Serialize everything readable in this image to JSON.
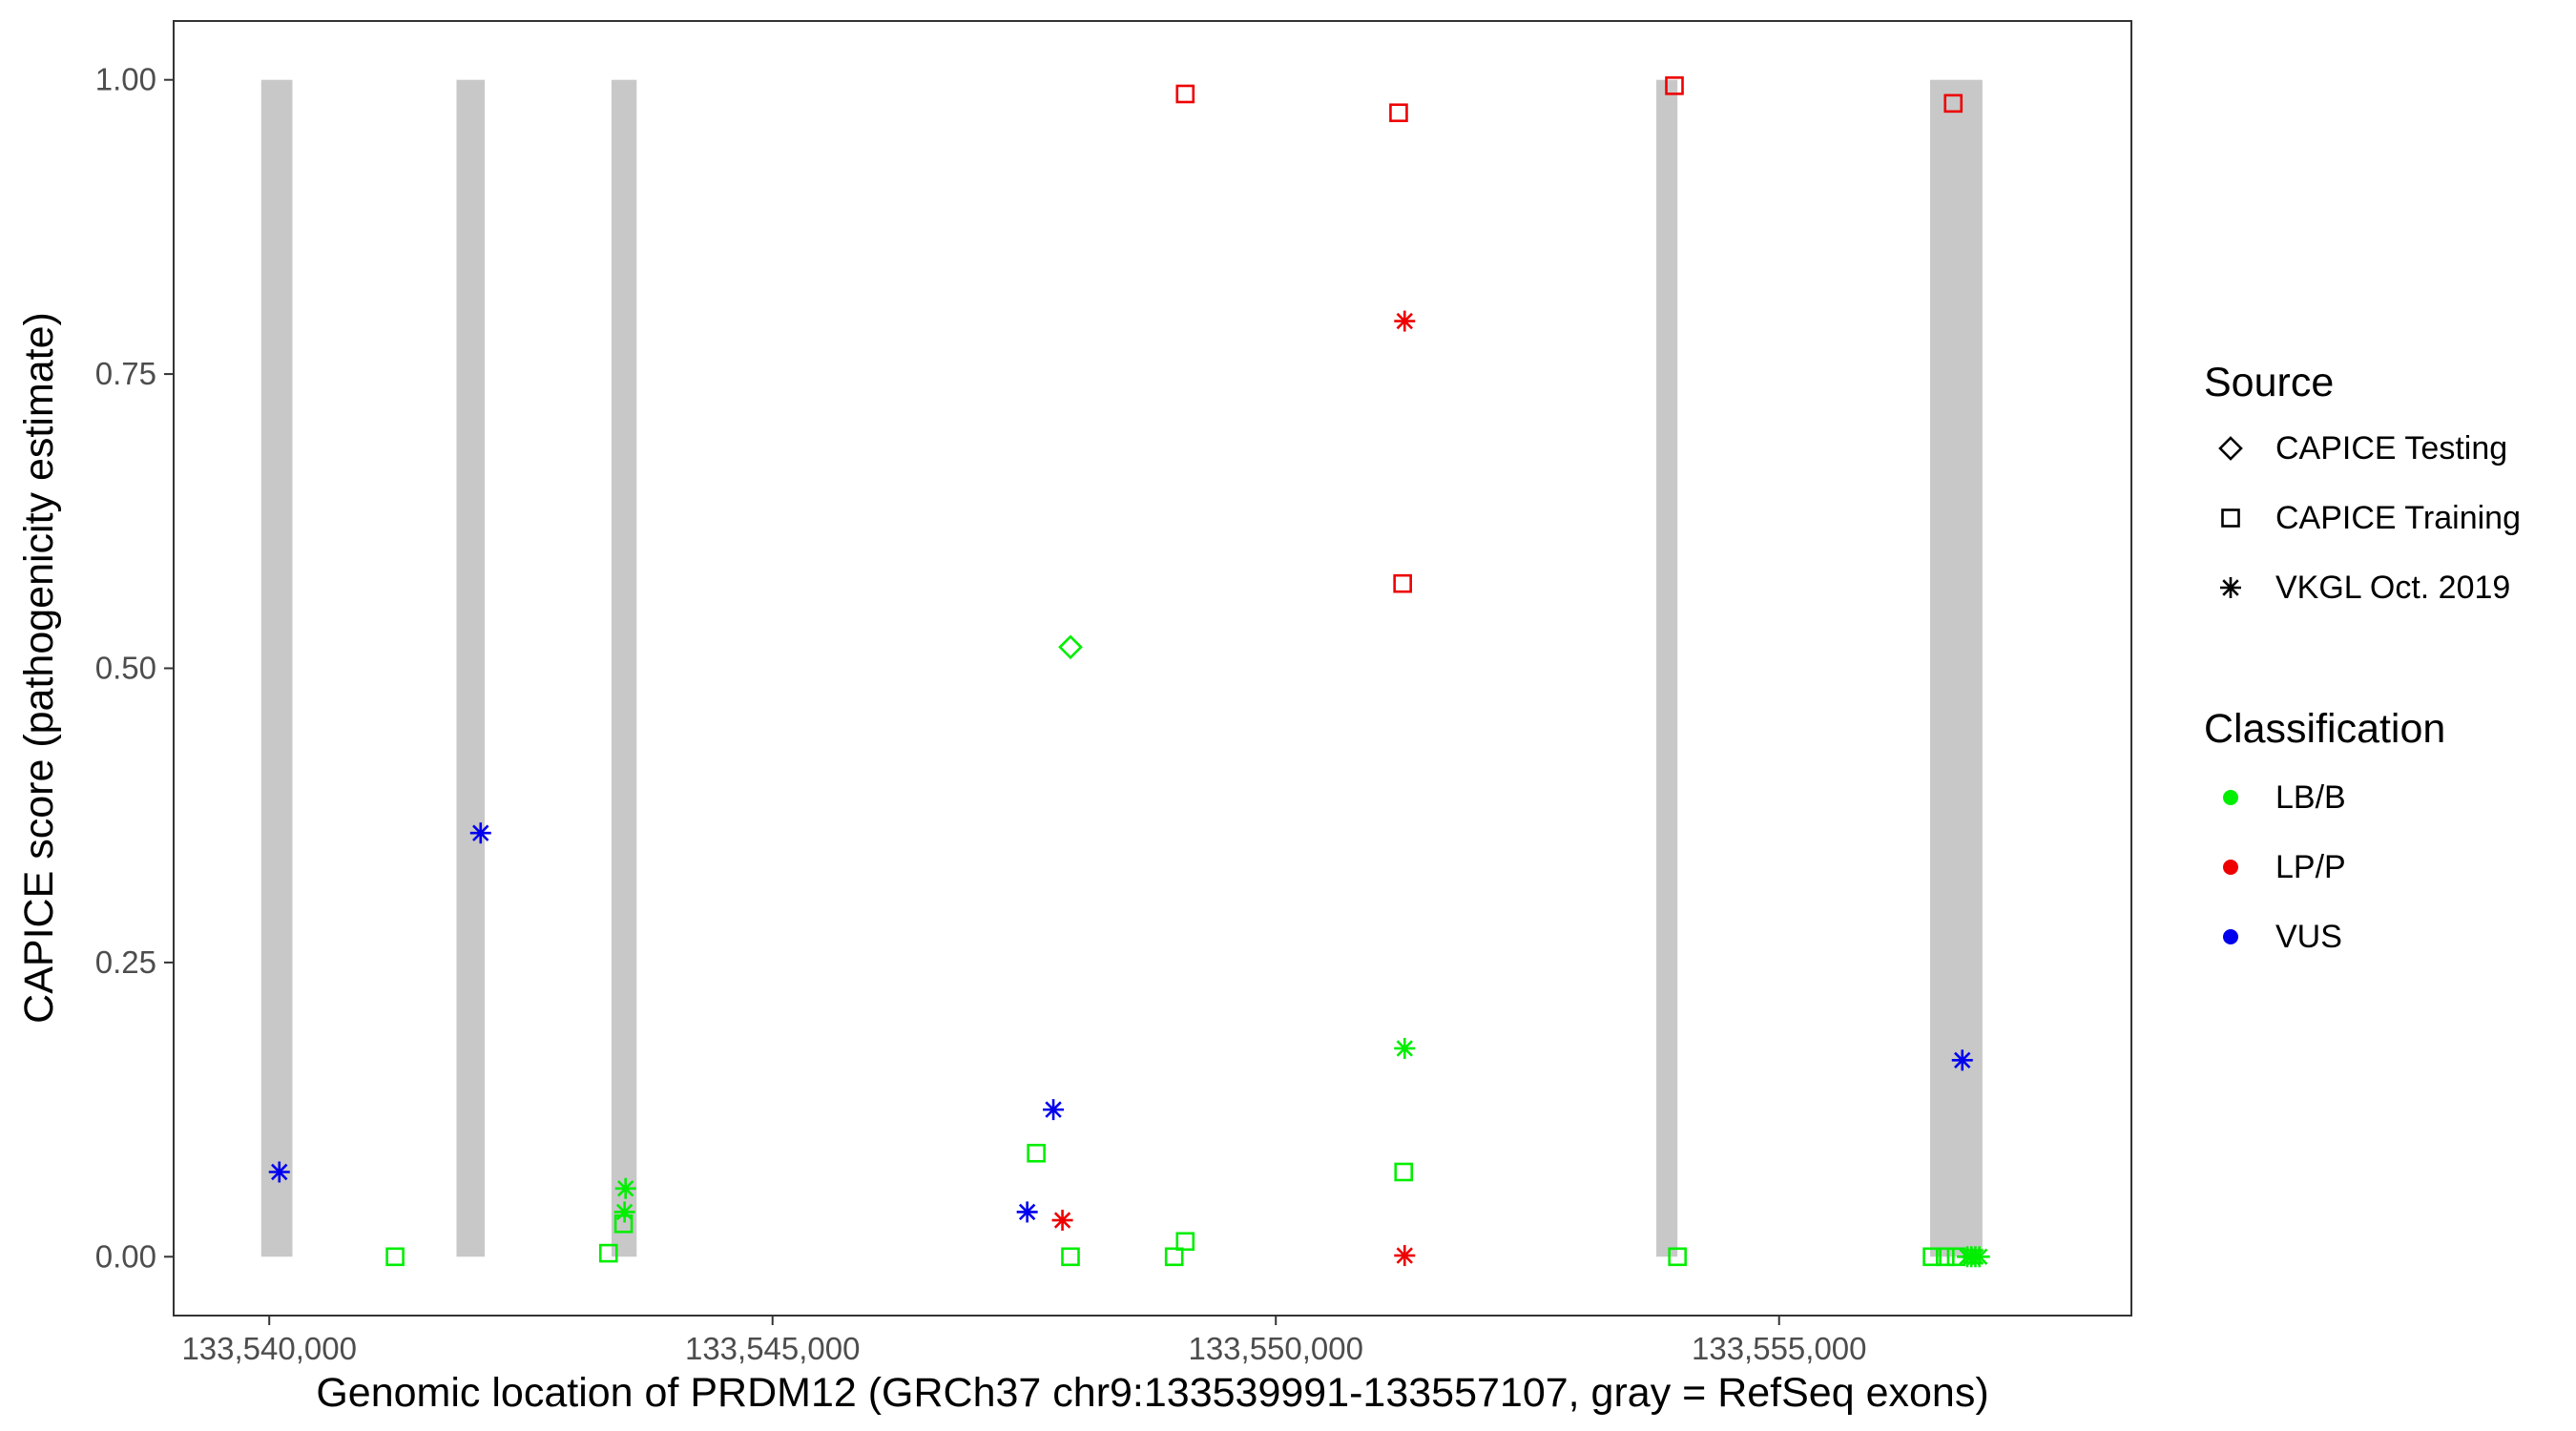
{
  "chart_data": {
    "type": "scatter",
    "xlabel": "Genomic location of PRDM12 (GRCh37 chr9:133539991-133557107, gray = RefSeq exons)",
    "ylabel": "CAPICE score (pathogenicity estimate)",
    "xlim": [
      133539050,
      133558500
    ],
    "ylim": [
      -0.05,
      1.05
    ],
    "x_ticks": [
      {
        "value": 133540000,
        "label": "133,540,000"
      },
      {
        "value": 133545000,
        "label": "133,545,000"
      },
      {
        "value": 133550000,
        "label": "133,550,000"
      },
      {
        "value": 133555000,
        "label": "133,555,000"
      }
    ],
    "y_ticks": [
      {
        "value": 0.0,
        "label": "0.00"
      },
      {
        "value": 0.25,
        "label": "0.25"
      },
      {
        "value": 0.5,
        "label": "0.50"
      },
      {
        "value": 0.75,
        "label": "0.75"
      },
      {
        "value": 1.0,
        "label": "1.00"
      }
    ],
    "exons": [
      {
        "start": 133539920,
        "end": 133540230
      },
      {
        "start": 133541860,
        "end": 133542140
      },
      {
        "start": 133543400,
        "end": 133543650
      },
      {
        "start": 133553780,
        "end": 133553990
      },
      {
        "start": 133556500,
        "end": 133557020
      }
    ],
    "exon_color": "#c8c8c8",
    "legend_source": {
      "title": "Source",
      "entries": [
        {
          "label": "CAPICE Testing",
          "shape": "diamond"
        },
        {
          "label": "CAPICE Training",
          "shape": "square"
        },
        {
          "label": "VKGL Oct. 2019",
          "shape": "asterisk"
        }
      ]
    },
    "legend_classification": {
      "title": "Classification",
      "entries": [
        {
          "label": "LB/B",
          "color": "#00ee00"
        },
        {
          "label": "LP/P",
          "color": "#ee0000"
        },
        {
          "label": "VUS",
          "color": "#0000ee"
        }
      ]
    },
    "points": [
      {
        "x": 133540100,
        "y": 0.072,
        "shape": "asterisk",
        "class": "VUS"
      },
      {
        "x": 133541250,
        "y": 0.0,
        "shape": "square",
        "class": "LB/B"
      },
      {
        "x": 133542100,
        "y": 0.36,
        "shape": "asterisk",
        "class": "VUS"
      },
      {
        "x": 133543370,
        "y": 0.003,
        "shape": "square",
        "class": "LB/B"
      },
      {
        "x": 133543520,
        "y": 0.028,
        "shape": "square",
        "class": "LB/B"
      },
      {
        "x": 133543530,
        "y": 0.038,
        "shape": "asterisk",
        "class": "LB/B"
      },
      {
        "x": 133543540,
        "y": 0.058,
        "shape": "asterisk",
        "class": "LB/B"
      },
      {
        "x": 133547530,
        "y": 0.038,
        "shape": "asterisk",
        "class": "VUS"
      },
      {
        "x": 133547620,
        "y": 0.088,
        "shape": "square",
        "class": "LB/B"
      },
      {
        "x": 133547790,
        "y": 0.125,
        "shape": "asterisk",
        "class": "VUS"
      },
      {
        "x": 133547880,
        "y": 0.031,
        "shape": "asterisk",
        "class": "LP/P"
      },
      {
        "x": 133547960,
        "y": 0.0,
        "shape": "square",
        "class": "LB/B"
      },
      {
        "x": 133547960,
        "y": 0.518,
        "shape": "diamond",
        "class": "LB/B"
      },
      {
        "x": 133548990,
        "y": 0.0,
        "shape": "square",
        "class": "LB/B"
      },
      {
        "x": 133549100,
        "y": 0.013,
        "shape": "square",
        "class": "LB/B"
      },
      {
        "x": 133549100,
        "y": 0.988,
        "shape": "square",
        "class": "LP/P"
      },
      {
        "x": 133551220,
        "y": 0.972,
        "shape": "square",
        "class": "LP/P"
      },
      {
        "x": 133551260,
        "y": 0.572,
        "shape": "square",
        "class": "LP/P"
      },
      {
        "x": 133551270,
        "y": 0.072,
        "shape": "square",
        "class": "LB/B"
      },
      {
        "x": 133551280,
        "y": 0.795,
        "shape": "asterisk",
        "class": "LP/P"
      },
      {
        "x": 133551280,
        "y": 0.177,
        "shape": "asterisk",
        "class": "LB/B"
      },
      {
        "x": 133551280,
        "y": 0.001,
        "shape": "asterisk",
        "class": "LP/P"
      },
      {
        "x": 133553960,
        "y": 0.995,
        "shape": "square",
        "class": "LP/P"
      },
      {
        "x": 133553990,
        "y": 0.0,
        "shape": "square",
        "class": "LB/B"
      },
      {
        "x": 133556520,
        "y": 0.0,
        "shape": "square",
        "class": "LB/B"
      },
      {
        "x": 133556650,
        "y": 0.0,
        "shape": "square",
        "class": "LB/B"
      },
      {
        "x": 133556730,
        "y": 0.98,
        "shape": "square",
        "class": "LP/P"
      },
      {
        "x": 133556760,
        "y": 0.0,
        "shape": "square",
        "class": "LB/B"
      },
      {
        "x": 133556820,
        "y": 0.167,
        "shape": "asterisk",
        "class": "VUS"
      },
      {
        "x": 133556870,
        "y": 0.0,
        "shape": "asterisk",
        "class": "LB/B"
      },
      {
        "x": 133556910,
        "y": 0.0,
        "shape": "asterisk",
        "class": "LB/B"
      },
      {
        "x": 133556950,
        "y": 0.0,
        "shape": "asterisk",
        "class": "LB/B"
      },
      {
        "x": 133556990,
        "y": 0.0,
        "shape": "asterisk",
        "class": "LB/B"
      }
    ]
  }
}
